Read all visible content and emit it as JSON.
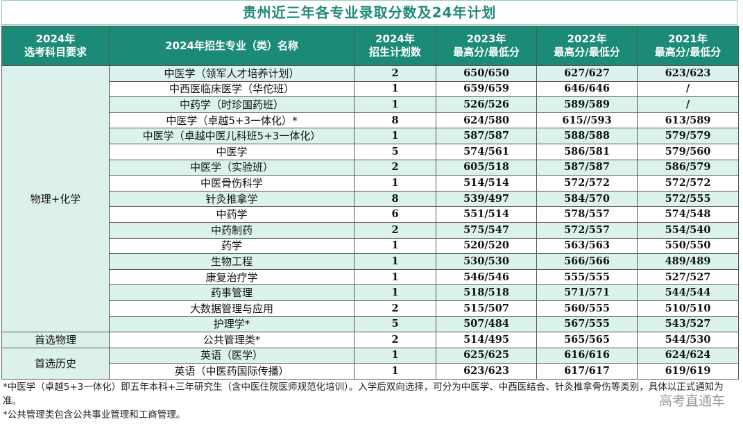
{
  "title": "贵州近三年各专业录取分数及24年计划",
  "header": [
    [
      "2024年",
      "选考科目要求"
    ],
    [
      "2024年招生专业（类）名称"
    ],
    [
      "2024年",
      "招生计划数"
    ],
    [
      "2023年",
      "最高分/最低分"
    ],
    [
      "2022年",
      "最高分/最低分"
    ],
    [
      "2021年",
      "最高分/最低分"
    ]
  ],
  "groups": [
    {
      "label": "物理+化学",
      "rows": [
        [
          "中医学（领军人才培养计划）",
          2,
          "650/650",
          "627/627",
          "623/623"
        ],
        [
          "中西医临床医学（华佗班）",
          1,
          "659/659",
          "646/646",
          "/"
        ],
        [
          "中药学（时珍国药班）",
          1,
          "526/526",
          "589/589",
          "/"
        ],
        [
          "中医学（卓越5+3一体化）*",
          8,
          "624/580",
          "615//593",
          "613/589"
        ],
        [
          "中医学（卓越中医儿科班5+3一体化）",
          1,
          "587/587",
          "588/588",
          "579/579"
        ],
        [
          "中医学",
          5,
          "574/561",
          "586/581",
          "579/560"
        ],
        [
          "中医学（实验班）",
          2,
          "605/518",
          "587/587",
          "586/579"
        ],
        [
          "中医骨伤科学",
          1,
          "514/514",
          "572/572",
          "572/572"
        ],
        [
          "针灸推拿学",
          8,
          "539/497",
          "584/570",
          "572/555"
        ],
        [
          "中药学",
          6,
          "551/514",
          "578/557",
          "574/548"
        ],
        [
          "中药制药",
          2,
          "575/547",
          "572/557",
          "554/540"
        ],
        [
          "药学",
          1,
          "520/520",
          "563/563",
          "550/550"
        ],
        [
          "生物工程",
          1,
          "530/530",
          "566/566",
          "489/489"
        ],
        [
          "康复治疗学",
          1,
          "546/546",
          "555/555",
          "527/527"
        ],
        [
          "药事管理",
          1,
          "518/518",
          "571/571",
          "544/544"
        ],
        [
          "大数据管理与应用",
          2,
          "515/507",
          "560/555",
          "510/510"
        ],
        [
          "护理学*",
          5,
          "507/484",
          "567/555",
          "543/527"
        ]
      ]
    },
    {
      "label": "首选物理",
      "rows": [
        [
          "公共管理类*",
          2,
          "514/495",
          "565/565",
          "544/530"
        ]
      ]
    },
    {
      "label": "首选历史",
      "rows": [
        [
          "英语（医学）",
          1,
          "625/625",
          "616/616",
          "624/624"
        ],
        [
          "英语（中医药国际传播）",
          1,
          "623/623",
          "617/617",
          "619/619"
        ]
      ]
    }
  ],
  "footnotes": [
    "*中医学（卓越5+3一体化）即五年本科+三年研究生（含中医住院医师规范化培训）。入学后双向选择，可分为中医学、中西医结合、针灸推拿骨伤等类别，具体以正式通知为准。",
    "*公共管理类包含公共事业管理和工商管理。"
  ],
  "watermark": "高考直通车"
}
